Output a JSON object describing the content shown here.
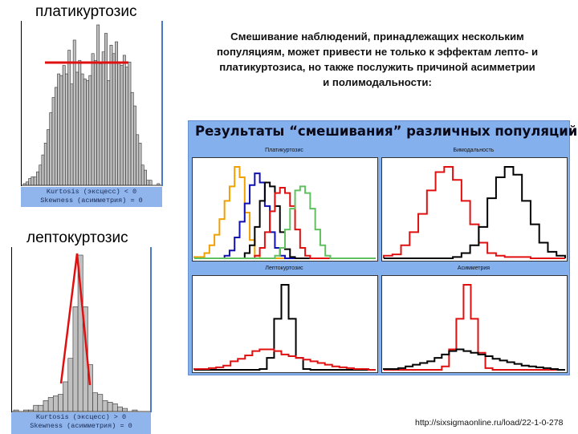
{
  "left": {
    "platy": {
      "title": "платикуртозис",
      "stat_line1": "Kurtosis (эксцесс) < 0",
      "stat_line2": "Skewness (асимметрия) = 0"
    },
    "lepto": {
      "title": "лептокуртозис",
      "stat_line1": "Kurtosis (эксцесс) > 0",
      "stat_line2": "Skewness (асимметрия) = 0"
    }
  },
  "description": {
    "line1": "Смешивание наблюдений, принадлежащих нескольким",
    "line2": "популяциям, может привести не только к эффектам лепто- и",
    "line3": "платикуртозиса, но также послужить причиной асимметрии",
    "line4": "и полимодальности:"
  },
  "panel": {
    "title": "Результаты “смешивания” различных популяций",
    "charts": [
      {
        "label": "Платикуртозис"
      },
      {
        "label": "Бимодальность"
      },
      {
        "label": "Лептокуртозис"
      },
      {
        "label": "Асимметрия"
      }
    ]
  },
  "source_url": "http://sixsigmaonline.ru/load/22-1-0-278",
  "colors": {
    "panel_bg": "#85b0ee",
    "bar_fill": "#c0c0c0",
    "red": "#e01010",
    "orange": "#f0a000",
    "blue": "#1010b0",
    "green": "#60c060",
    "black": "#000000"
  },
  "chart_data": [
    {
      "type": "bar",
      "title": "платикуртозис",
      "annotations": [
        "Kurtosis (эксцесс) < 0",
        "Skewness (асимметрия) = 0"
      ],
      "values": [
        1,
        2,
        4,
        5,
        5,
        8,
        12,
        18,
        25,
        33,
        43,
        52,
        58,
        66,
        65,
        71,
        66,
        80,
        60,
        86,
        67,
        74,
        66,
        63,
        62,
        65,
        78,
        74,
        95,
        72,
        79,
        90,
        62,
        83,
        78,
        85,
        73,
        71,
        77,
        70,
        73,
        55,
        47,
        30,
        25,
        12,
        9,
        3,
        3,
        0,
        0,
        1
      ],
      "grid": false
    },
    {
      "type": "bar",
      "title": "лептокуртозис",
      "annotations": [
        "Kurtosis (эксцесс) > 0",
        "Skewness (асимметрия) = 0"
      ],
      "values": [
        1,
        0,
        1,
        1,
        4,
        4,
        7,
        9,
        10,
        11,
        19,
        34,
        67,
        100,
        67,
        30,
        12,
        11,
        7,
        6,
        5,
        3,
        2,
        0,
        1
      ],
      "grid": false
    },
    {
      "type": "line",
      "title": "Платикуртозис",
      "series": [
        {
          "name": "orange",
          "values": [
            1,
            1,
            4,
            10,
            18,
            30,
            44,
            55,
            70,
            62,
            35,
            14,
            2,
            0,
            0,
            0,
            0,
            0,
            0,
            0,
            0,
            0,
            0,
            0,
            0,
            0,
            0,
            0,
            0,
            0,
            0,
            0,
            0,
            0,
            0,
            0
          ]
        },
        {
          "name": "blue",
          "values": [
            0,
            0,
            0,
            0,
            0,
            0,
            2,
            6,
            16,
            28,
            42,
            56,
            65,
            58,
            40,
            20,
            8,
            2,
            0,
            0,
            0,
            0,
            0,
            0,
            0,
            0,
            0,
            0,
            0,
            0,
            0,
            0,
            0,
            0,
            0,
            0
          ]
        },
        {
          "name": "black",
          "values": [
            0,
            0,
            0,
            0,
            0,
            0,
            0,
            0,
            0,
            0,
            4,
            10,
            24,
            44,
            58,
            55,
            40,
            20,
            7,
            1,
            0,
            0,
            0,
            0,
            0,
            0,
            0,
            0,
            0,
            0,
            0,
            0,
            0,
            0,
            0,
            0
          ]
        },
        {
          "name": "red",
          "values": [
            0,
            0,
            0,
            0,
            0,
            0,
            0,
            0,
            0,
            0,
            0,
            0,
            2,
            8,
            20,
            36,
            50,
            54,
            50,
            40,
            22,
            8,
            2,
            0,
            0,
            0,
            0,
            0,
            0,
            0,
            0,
            0,
            0,
            0,
            0,
            0
          ]
        },
        {
          "name": "green",
          "values": [
            0,
            0,
            0,
            0,
            0,
            0,
            0,
            0,
            0,
            0,
            0,
            0,
            0,
            0,
            0,
            0,
            2,
            8,
            22,
            38,
            52,
            55,
            50,
            38,
            22,
            10,
            2,
            0,
            0,
            0,
            0,
            0,
            0,
            0,
            0,
            0
          ]
        }
      ]
    },
    {
      "type": "line",
      "title": "Бимодальность",
      "series": [
        {
          "name": "red",
          "values": [
            2,
            3,
            10,
            20,
            34,
            52,
            66,
            70,
            60,
            44,
            26,
            12,
            4,
            2,
            1,
            1,
            1,
            0,
            0,
            0,
            0
          ]
        },
        {
          "name": "black",
          "values": [
            0,
            0,
            0,
            0,
            0,
            0,
            0,
            0,
            1,
            4,
            10,
            24,
            46,
            62,
            70,
            64,
            44,
            26,
            12,
            5,
            2
          ]
        }
      ]
    },
    {
      "type": "line",
      "title": "Лептокуртозис",
      "series": [
        {
          "name": "black",
          "values": [
            0,
            0,
            0,
            0,
            0,
            0,
            0,
            0,
            0,
            1,
            14,
            60,
            100,
            60,
            14,
            1,
            0,
            0,
            0,
            0,
            0,
            0,
            0,
            0,
            0
          ]
        },
        {
          "name": "red",
          "values": [
            1,
            1,
            2,
            3,
            5,
            10,
            13,
            17,
            22,
            24,
            24,
            22,
            18,
            16,
            14,
            12,
            10,
            8,
            6,
            4,
            3,
            2,
            1,
            1,
            0
          ]
        }
      ]
    },
    {
      "type": "line",
      "title": "Асимметрия",
      "series": [
        {
          "name": "red",
          "values": [
            0,
            0,
            0,
            0,
            0,
            0,
            0,
            0,
            4,
            24,
            60,
            100,
            60,
            20,
            2,
            0,
            0,
            0,
            0,
            0,
            0,
            0,
            0,
            0,
            0
          ]
        },
        {
          "name": "black",
          "values": [
            1,
            1,
            2,
            4,
            6,
            8,
            10,
            14,
            18,
            22,
            24,
            22,
            20,
            18,
            16,
            13,
            11,
            9,
            7,
            5,
            4,
            3,
            2,
            1,
            0
          ]
        }
      ]
    }
  ]
}
